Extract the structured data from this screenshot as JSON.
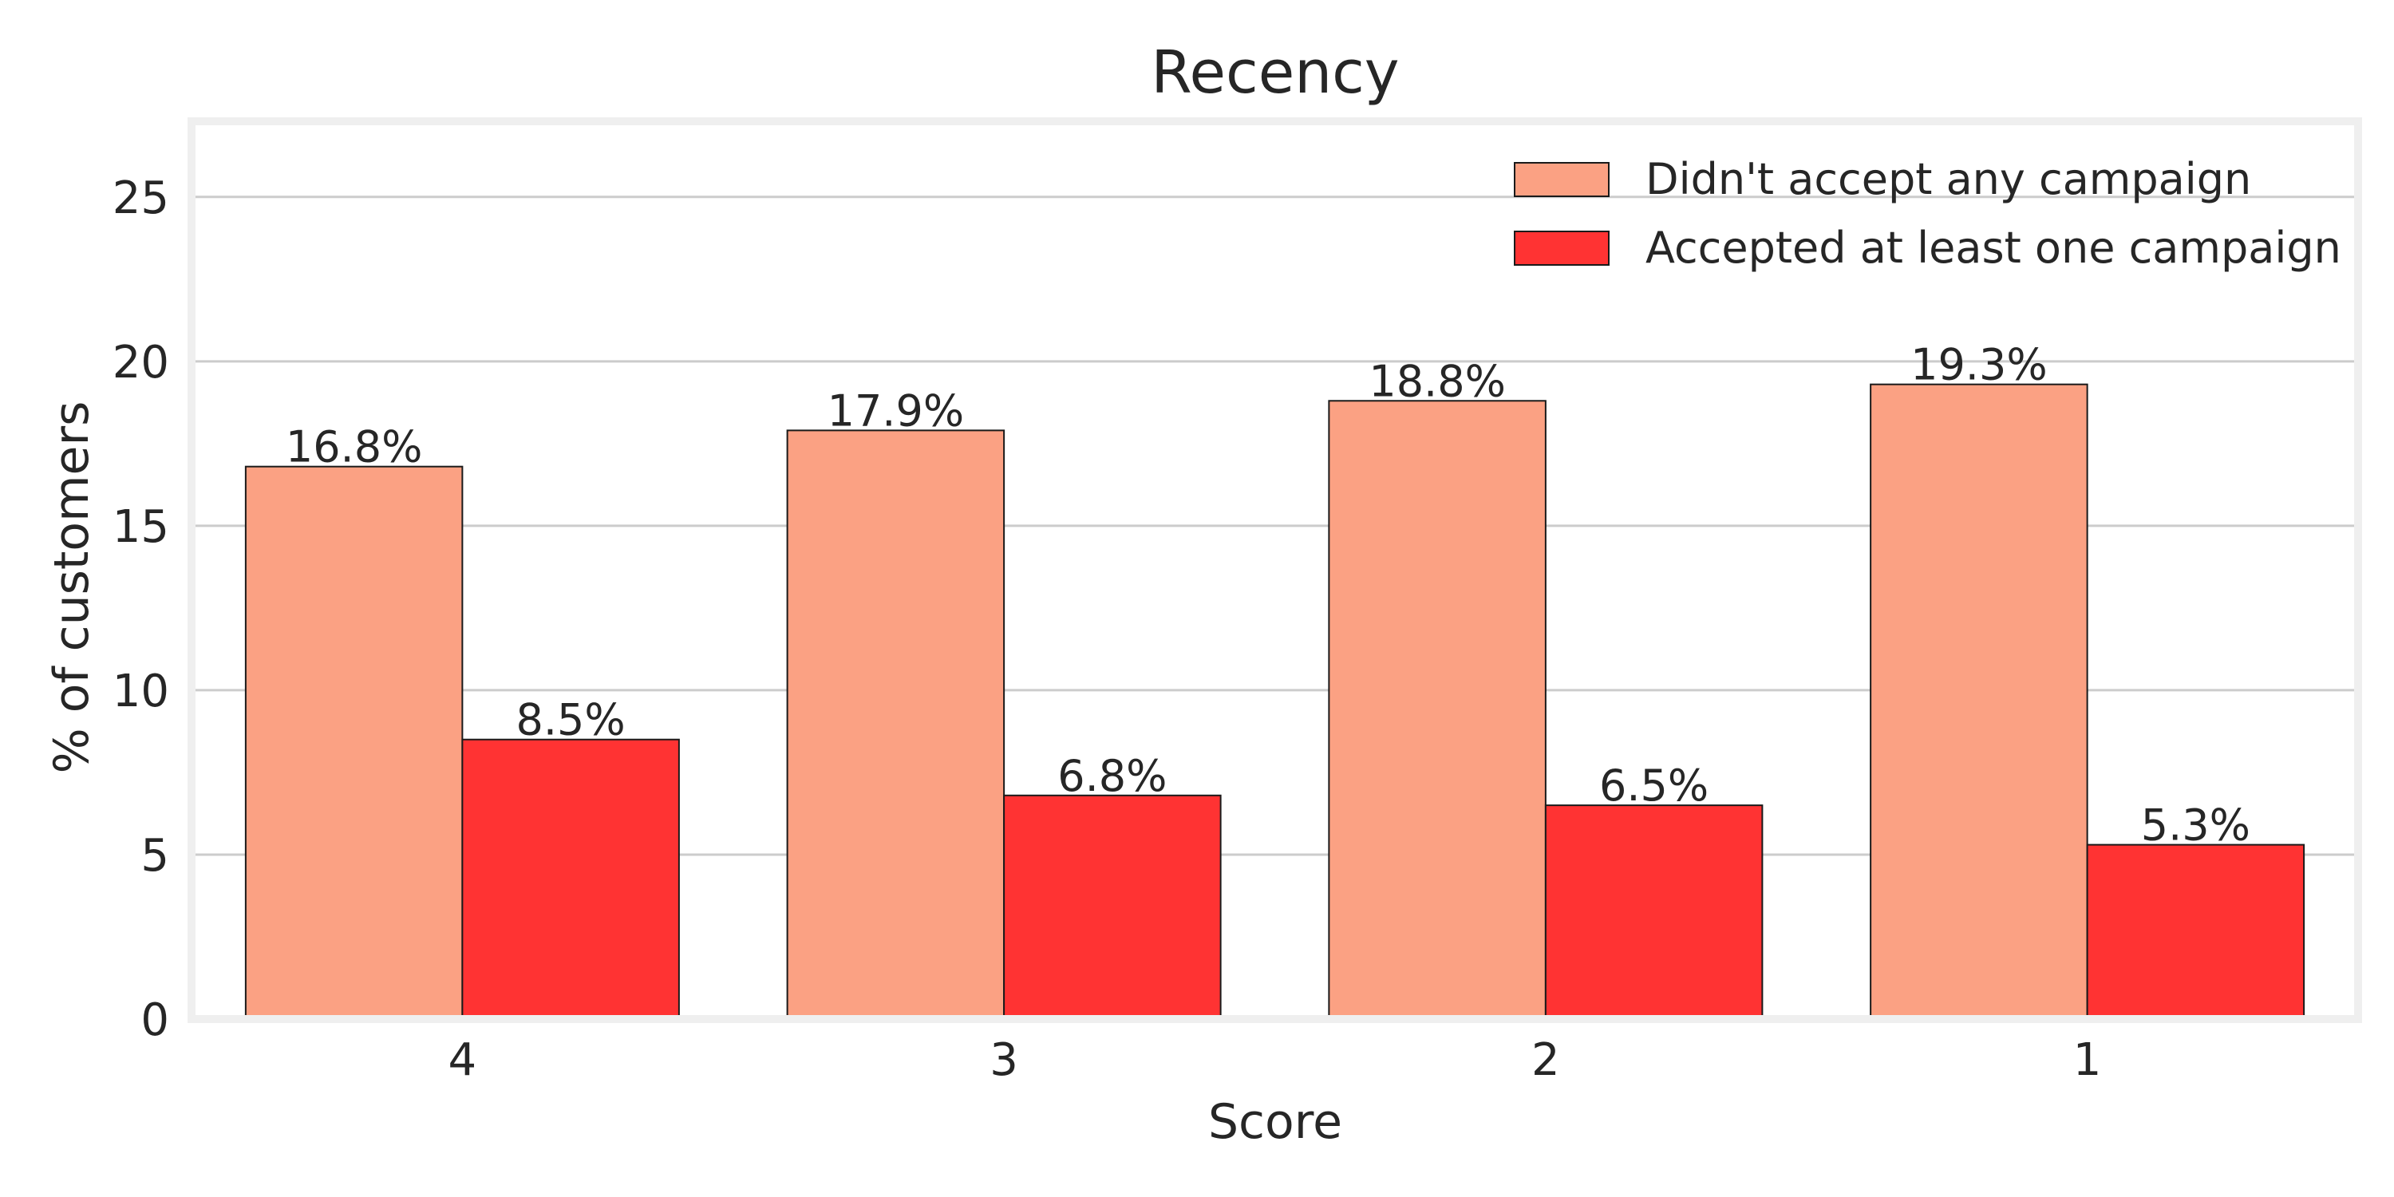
{
  "chart_data": {
    "type": "bar",
    "title": "Recency",
    "xlabel": "Score",
    "ylabel": "% of customers",
    "categories": [
      "4",
      "3",
      "2",
      "1"
    ],
    "ylim": [
      0,
      27.3
    ],
    "yticks": [
      0,
      5,
      10,
      15,
      20,
      25
    ],
    "grid": true,
    "legend_position": "top-right",
    "series": [
      {
        "name": "Didn't accept any campaign",
        "color": "#fba183",
        "values": [
          16.8,
          17.9,
          18.8,
          19.3
        ],
        "labels": [
          "16.8%",
          "17.9%",
          "18.8%",
          "19.3%"
        ]
      },
      {
        "name": "Accepted at least one campaign",
        "color": "#ff3333",
        "values": [
          8.5,
          6.8,
          6.5,
          5.3
        ],
        "labels": [
          "8.5%",
          "6.8%",
          "6.5%",
          "5.3%"
        ]
      }
    ]
  }
}
